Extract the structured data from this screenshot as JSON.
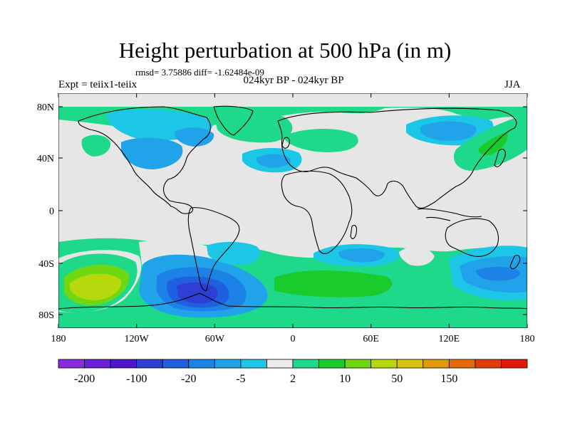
{
  "title": "Height perturbation at 500 hPa (in m)",
  "stats": "rmsd= 3.75886 diff= -1.62484e-09",
  "experiment": "Expt = teiix1-teiix",
  "period": "024kyr BP - 024kyr BP",
  "season": "JJA",
  "lat_ticks": [
    "80N",
    "40N",
    "0",
    "40S",
    "80S"
  ],
  "lon_ticks": [
    "180",
    "120W",
    "60W",
    "0",
    "60E",
    "120E",
    "180"
  ],
  "colorbar": {
    "labels": [
      "-200",
      "-100",
      "-20",
      "-5",
      "2",
      "10",
      "50",
      "150"
    ],
    "colors": [
      "#8a2be2",
      "#6a1fd8",
      "#4b16cc",
      "#2f3fd6",
      "#1e60e0",
      "#1c82e6",
      "#20a3e8",
      "#1cc6e6",
      "#ececec",
      "#1ed98a",
      "#19cc2c",
      "#6fd813",
      "#b8d80e",
      "#d9c30c",
      "#e09a0b",
      "#e56a08",
      "#e23d08",
      "#e31a0a"
    ]
  },
  "colors": {
    "ocean_background": "#e6e6e6",
    "coastline": "#000000"
  }
}
